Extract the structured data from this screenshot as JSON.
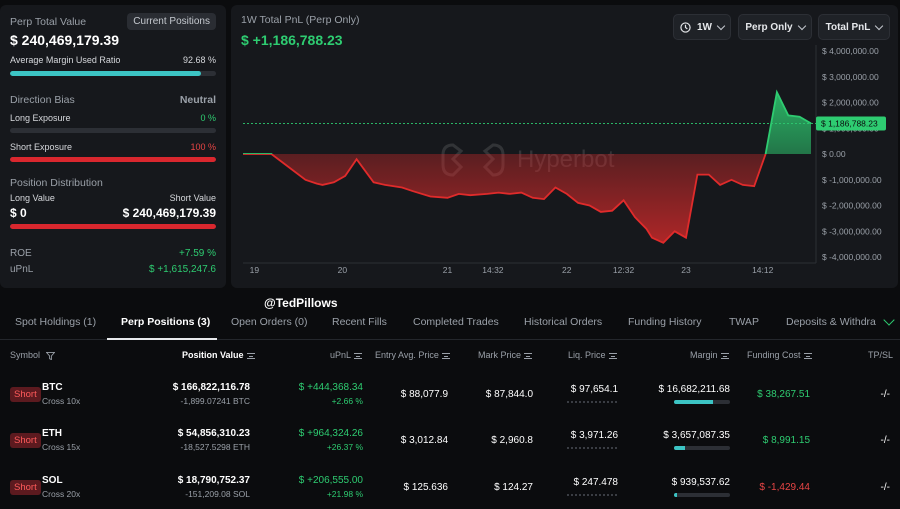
{
  "left": {
    "perp_total_value_label": "Perp Total Value",
    "current_positions_label": "Current Positions",
    "perp_total_value": "$ 240,469,179.39",
    "avg_margin_label": "Average Margin Used Ratio",
    "avg_margin_value": "92.68 %",
    "avg_margin_fraction": 0.9268,
    "direction_bias_label": "Direction Bias",
    "direction_bias_value": "Neutral",
    "long_exposure_label": "Long Exposure",
    "long_exposure_value": "0 %",
    "short_exposure_label": "Short Exposure",
    "short_exposure_value": "100 %",
    "position_dist_label": "Position Distribution",
    "long_value_label": "Long Value",
    "short_value_label": "Short Value",
    "long_value": "$ 0",
    "short_value": "$ 240,469,179.39",
    "roe_label": "ROE",
    "roe_value": "+7.59 %",
    "upnl_label": "uPnL",
    "upnl_value": "$ +1,615,247.6"
  },
  "chart": {
    "title": "1W Total PnL (Perp Only)",
    "value": "$ +1,186,788.23",
    "timeframe": "1W",
    "perp_filter": "Perp Only",
    "metric": "Total PnL",
    "watermark": "Hyperbot",
    "current_label": "$ 1,186,788.23",
    "colors": {
      "up": "#2ecc71",
      "down": "#e02b2b"
    }
  },
  "chart_data": {
    "type": "area",
    "ylim": [
      -4000000,
      4000000
    ],
    "y_ticks": [
      "$ 4,000,000.00",
      "$ 3,000,000.00",
      "$ 2,000,000.00",
      "$ 1,000,000.00",
      "$ 0.00",
      "$ -1,000,000.00",
      "$ -2,000,000.00",
      "$ -3,000,000.00",
      "$ -4,000,000.00"
    ],
    "y_tick_values": [
      4000000,
      3000000,
      2000000,
      1000000,
      0,
      -1000000,
      -2000000,
      -3000000,
      -4000000
    ],
    "x_ticks": [
      "19",
      "20",
      "21",
      "14:32",
      "22",
      "12:32",
      "23",
      "14:12"
    ],
    "x_tick_positions": [
      0.02,
      0.175,
      0.36,
      0.44,
      0.57,
      0.67,
      0.78,
      0.915
    ],
    "x": [
      0,
      0.05,
      0.08,
      0.11,
      0.13,
      0.14,
      0.16,
      0.18,
      0.2,
      0.23,
      0.25,
      0.28,
      0.3,
      0.33,
      0.36,
      0.38,
      0.4,
      0.43,
      0.45,
      0.47,
      0.49,
      0.51,
      0.53,
      0.55,
      0.57,
      0.59,
      0.61,
      0.63,
      0.65,
      0.67,
      0.69,
      0.71,
      0.72,
      0.74,
      0.76,
      0.78,
      0.8,
      0.82,
      0.84,
      0.86,
      0.88,
      0.9,
      0.92,
      0.94,
      0.96,
      0.98,
      1.0
    ],
    "values": [
      0,
      0,
      -500000,
      -1000000,
      -1150000,
      -1200000,
      -1100000,
      -850000,
      -200000,
      -1100000,
      -1200000,
      -1300000,
      -1450000,
      -1650000,
      -1700000,
      -1550000,
      -1600000,
      -1550000,
      -1500000,
      -1550000,
      -1500000,
      -1700000,
      -1750000,
      -1300000,
      -1550000,
      -1900000,
      -2000000,
      -2250000,
      -2200000,
      -1800000,
      -2450000,
      -2900000,
      -3250000,
      -3450000,
      -3000000,
      -3250000,
      -800000,
      -800000,
      -1200000,
      -1000000,
      -1200000,
      -1250000,
      0,
      2400000,
      1500000,
      1450000,
      1186788
    ]
  },
  "overlay": {
    "handle": "@TedPillows"
  },
  "tabs": [
    {
      "label": "Spot Holdings (1)"
    },
    {
      "label": "Perp Positions (3)"
    },
    {
      "label": "Open Orders (0)"
    },
    {
      "label": "Recent Fills"
    },
    {
      "label": "Completed Trades"
    },
    {
      "label": "Historical Orders"
    },
    {
      "label": "Funding History"
    },
    {
      "label": "TWAP"
    },
    {
      "label": "Deposits & Withdraw"
    }
  ],
  "table": {
    "headers": {
      "symbol": "Symbol",
      "position_value": "Position Value",
      "upnl": "uPnL",
      "entry": "Entry Avg. Price",
      "mark": "Mark Price",
      "liq": "Liq. Price",
      "margin": "Margin",
      "funding": "Funding Cost",
      "tpsl": "TP/SL"
    },
    "rows": [
      {
        "side": "Short",
        "symbol": "BTC",
        "leverage": "Cross 10x",
        "position_value": "$ 166,822,116.78",
        "size": "-1,899.07241 BTC",
        "upnl": "$ +444,368.34",
        "upnl_pct": "+2.66 %",
        "entry": "$ 88,077.9",
        "mark": "$ 87,844.0",
        "liq": "$ 97,654.1",
        "margin": "$ 16,682,211.68",
        "margin_fraction": 0.7,
        "funding": "$ 38,267.51",
        "funding_color": "#2ecc71",
        "tpsl": "-/-"
      },
      {
        "side": "Short",
        "symbol": "ETH",
        "leverage": "Cross 15x",
        "position_value": "$ 54,856,310.23",
        "size": "-18,527.5298 ETH",
        "upnl": "$ +964,324.26",
        "upnl_pct": "+26.37 %",
        "entry": "$ 3,012.84",
        "mark": "$ 2,960.8",
        "liq": "$ 3,971.26",
        "margin": "$ 3,657,087.35",
        "margin_fraction": 0.2,
        "funding": "$ 8,991.15",
        "funding_color": "#2ecc71",
        "tpsl": "-/-"
      },
      {
        "side": "Short",
        "symbol": "SOL",
        "leverage": "Cross 20x",
        "position_value": "$ 18,790,752.37",
        "size": "-151,209.08 SOL",
        "upnl": "$ +206,555.00",
        "upnl_pct": "+21.98 %",
        "entry": "$ 125.636",
        "mark": "$ 124.27",
        "liq": "$ 247.478",
        "margin": "$ 939,537.62",
        "margin_fraction": 0.06,
        "funding": "$ -1,429.44",
        "funding_color": "#e84545",
        "tpsl": "-/-"
      }
    ]
  }
}
